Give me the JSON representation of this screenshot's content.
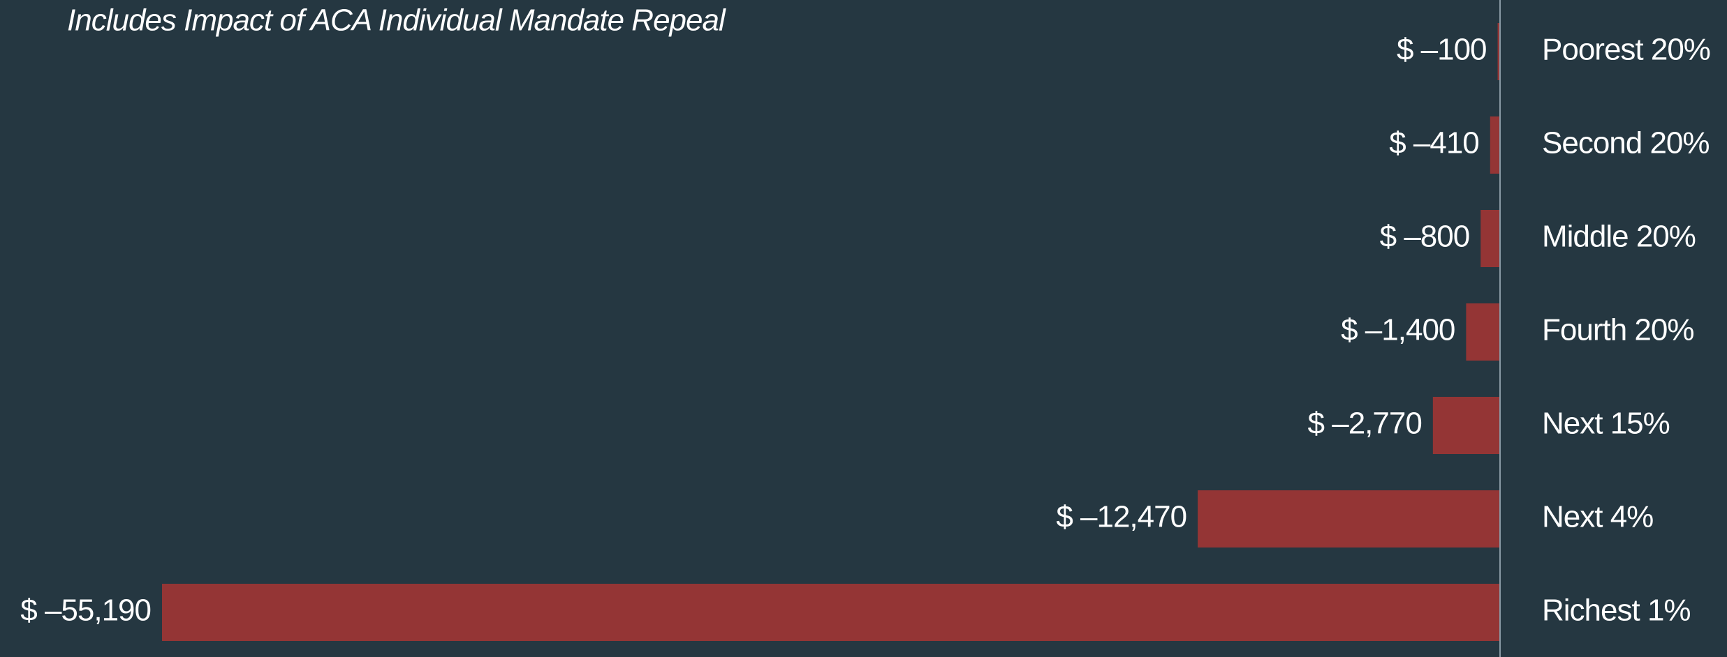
{
  "chart_data": {
    "type": "bar",
    "orientation": "horizontal",
    "subtitle": "Includes Impact of ACA Individual Mandate Repeal",
    "categories": [
      "Poorest 20%",
      "Second 20%",
      "Middle 20%",
      "Fourth 20%",
      "Next 15%",
      "Next 4%",
      "Richest 1%"
    ],
    "values": [
      -100,
      -410,
      -800,
      -1400,
      -2770,
      -12470,
      -55190
    ],
    "value_labels": [
      "$ –100",
      "$ –410",
      "$ –800",
      "$ –1,400",
      "$ –2,770",
      "$ –12,470",
      "$ –55,190"
    ],
    "color": "#943535"
  }
}
